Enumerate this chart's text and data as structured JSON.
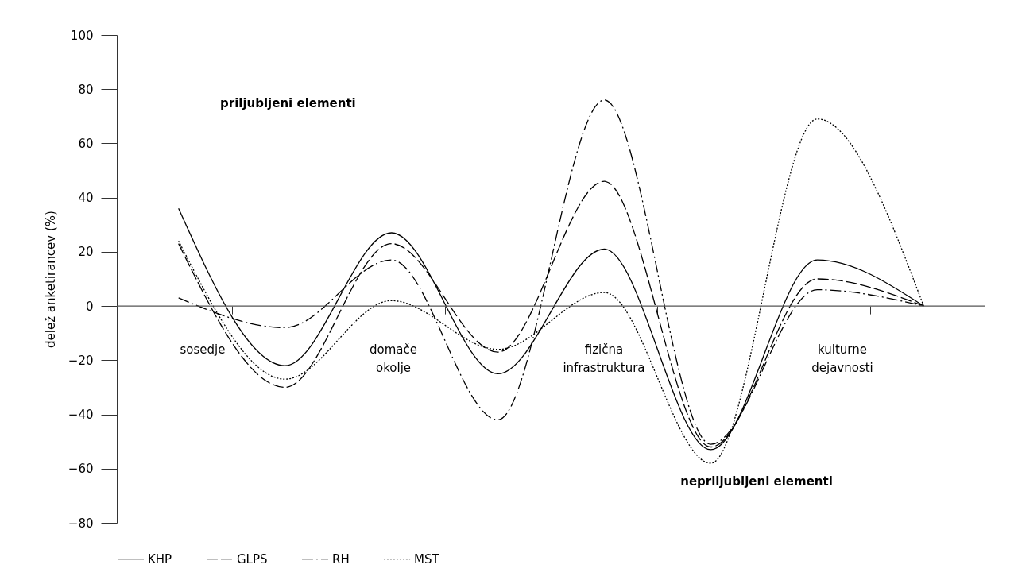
{
  "chart_data": {
    "type": "line",
    "ylabel": "delež anketirancev (%)",
    "categories": [
      null,
      null,
      null,
      null,
      null,
      null,
      null,
      null
    ],
    "series": [
      {
        "name": "KHP",
        "color": "#000000",
        "line_style": "solid",
        "values": [
          36,
          -22,
          27,
          -25,
          21,
          -53,
          17,
          0
        ]
      },
      {
        "name": "GLPS",
        "color": "#000000",
        "line_style": "dashed",
        "values": [
          23,
          -30,
          23,
          -17,
          46,
          -52,
          10,
          0
        ]
      },
      {
        "name": "RH",
        "color": "#000000",
        "line_style": "dashdot",
        "values": [
          3,
          -8,
          17,
          -42,
          76,
          -51,
          6,
          0
        ]
      },
      {
        "name": "MST",
        "color": "#000000",
        "line_style": "dotted",
        "values": [
          24,
          -27,
          2,
          -16,
          5,
          -58,
          69,
          0
        ]
      }
    ],
    "ylim": [
      -80,
      100
    ],
    "yticks": [
      {
        "value": -80,
        "label": "−80"
      },
      {
        "value": -60,
        "label": "−60"
      },
      {
        "value": -40,
        "label": "−40"
      },
      {
        "value": -20,
        "label": "−20"
      },
      0,
      20,
      40,
      60,
      80,
      100
    ],
    "tick_labels": "y",
    "ref_lines": [
      {
        "axis": "y",
        "value": 0
      }
    ],
    "legend": "bottom",
    "marker": "none",
    "annotations": [
      "priljubljeni elementi",
      "sosedje",
      "domače okolje",
      "fizična infrastruktura",
      "kulturne dejavnosti",
      "nepriljubljeni elementi"
    ]
  }
}
